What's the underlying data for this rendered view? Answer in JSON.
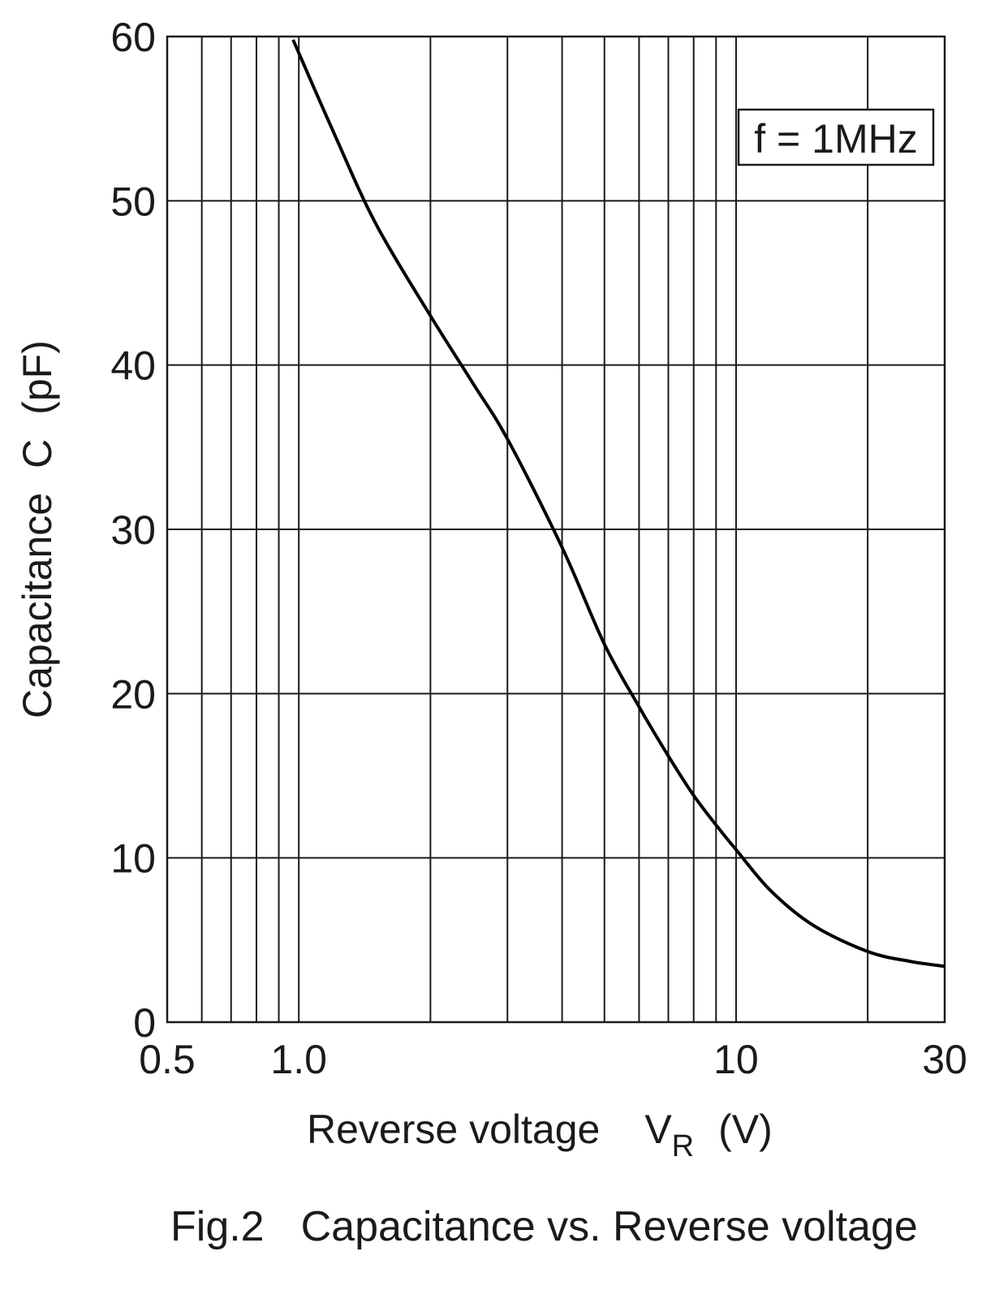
{
  "chart_data": {
    "type": "line",
    "x_scale": "log",
    "y_scale": "linear",
    "xlim": [
      0.5,
      30
    ],
    "ylim": [
      0,
      60
    ],
    "x_ticks": [
      {
        "value": 0.5,
        "label": "0.5"
      },
      {
        "value": 1,
        "label": "1.0"
      },
      {
        "value": 10,
        "label": "10"
      },
      {
        "value": 30,
        "label": "30"
      }
    ],
    "y_ticks": [
      {
        "value": 0,
        "label": "0"
      },
      {
        "value": 10,
        "label": "10"
      },
      {
        "value": 20,
        "label": "20"
      },
      {
        "value": 30,
        "label": "30"
      },
      {
        "value": 40,
        "label": "40"
      },
      {
        "value": 50,
        "label": "50"
      },
      {
        "value": 60,
        "label": "60"
      }
    ],
    "x_gridlines": [
      0.5,
      0.6,
      0.7,
      0.8,
      0.9,
      1,
      2,
      3,
      4,
      5,
      6,
      7,
      8,
      9,
      10,
      20,
      30
    ],
    "y_gridlines": [
      0,
      10,
      20,
      30,
      40,
      50,
      60
    ],
    "grid": true,
    "xlabel": {
      "main": "Reverse voltage",
      "symbol": "V",
      "subscript": "R",
      "unit": "(V)"
    },
    "ylabel": {
      "main": "Capacitance",
      "symbol": "C",
      "unit": "(pF)"
    },
    "annotation": "f = 1MHz",
    "annotation_position": "top-right",
    "caption": {
      "figure": "Fig.2",
      "text": "Capacitance vs. Reverse voltage"
    },
    "series": [
      {
        "x": [
          0.97,
          1.2,
          1.5,
          2.0,
          2.5,
          3.0,
          4.0,
          5.0,
          6.0,
          7.0,
          8.0,
          9.0,
          10.0,
          12.0,
          15.0,
          20.0,
          25.0,
          30.0
        ],
        "y": [
          59.8,
          54.2,
          48.6,
          43.0,
          38.9,
          35.5,
          28.9,
          23.0,
          19.2,
          16.2,
          13.8,
          12.0,
          10.5,
          8.0,
          5.9,
          4.3,
          3.7,
          3.4
        ]
      }
    ]
  }
}
